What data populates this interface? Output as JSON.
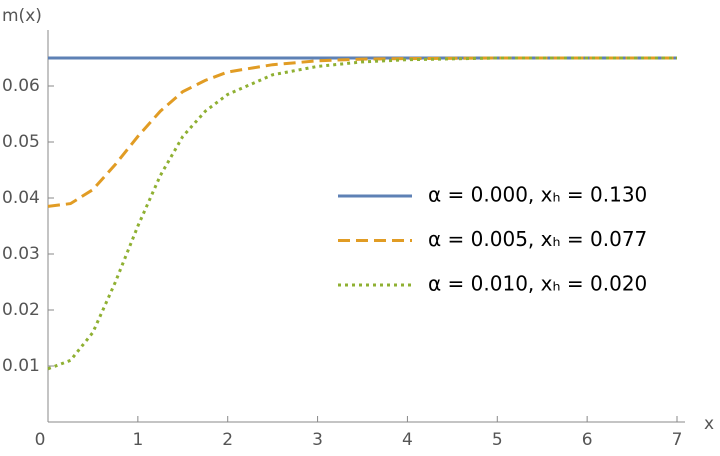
{
  "chart_data": {
    "type": "line",
    "xlabel": "x",
    "ylabel": "m(x)",
    "x": [
      0,
      0.25,
      0.5,
      0.75,
      1,
      1.25,
      1.5,
      1.75,
      2,
      2.5,
      3,
      3.5,
      4,
      5,
      6,
      7
    ],
    "series": [
      {
        "name": "α = 0.000, xₕ = 0.130",
        "color": "#5e81b5",
        "dash": "solid",
        "values": [
          0.065,
          0.065,
          0.065,
          0.065,
          0.065,
          0.065,
          0.065,
          0.065,
          0.065,
          0.065,
          0.065,
          0.065,
          0.065,
          0.065,
          0.065,
          0.065
        ]
      },
      {
        "name": "α = 0.005, xₕ = 0.077",
        "color": "#e19c24",
        "dash": "dashed",
        "values": [
          0.0385,
          0.039,
          0.0415,
          0.046,
          0.051,
          0.0555,
          0.059,
          0.061,
          0.0625,
          0.0638,
          0.0645,
          0.0648,
          0.0649,
          0.065,
          0.065,
          0.065
        ]
      },
      {
        "name": "α = 0.010, xₕ = 0.020",
        "color": "#8fb032",
        "dash": "dotted",
        "values": [
          0.0095,
          0.011,
          0.016,
          0.025,
          0.035,
          0.044,
          0.051,
          0.0555,
          0.0585,
          0.062,
          0.0635,
          0.0643,
          0.0647,
          0.065,
          0.065,
          0.065
        ]
      }
    ],
    "xlim": [
      0,
      7
    ],
    "ylim": [
      0,
      0.07
    ],
    "xticks": [
      0,
      1,
      2,
      3,
      4,
      5,
      6,
      7
    ],
    "yticks": [
      0.01,
      0.02,
      0.03,
      0.04,
      0.05,
      0.06
    ]
  }
}
